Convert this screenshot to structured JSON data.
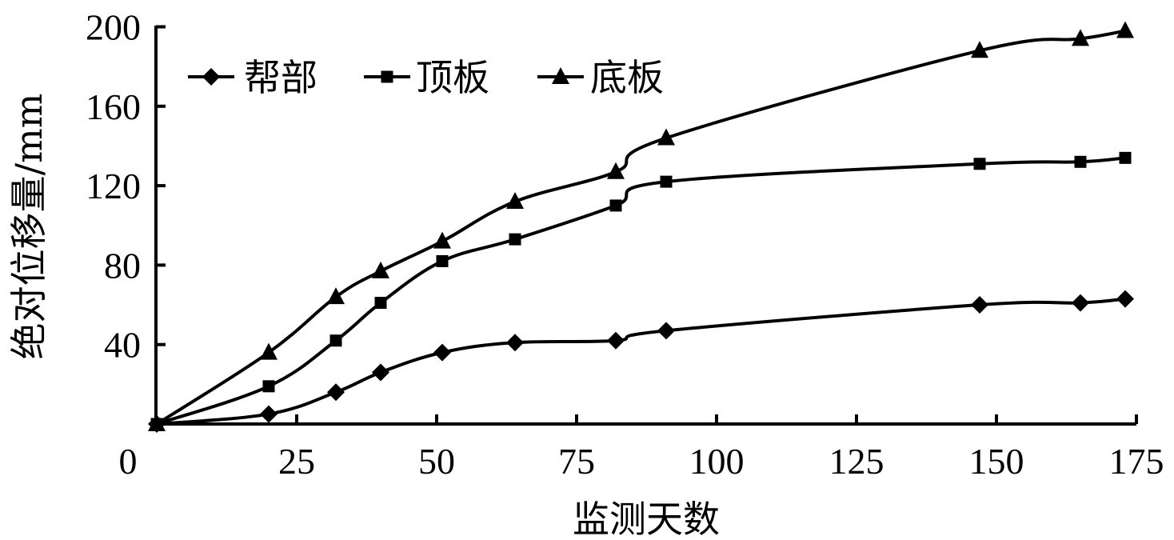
{
  "chart_data": {
    "type": "line",
    "title": "",
    "xlabel": "监测天数",
    "ylabel": "绝对位移量/mm",
    "xlim": [
      0,
      175
    ],
    "ylim": [
      0,
      200
    ],
    "xticks": [
      0,
      25,
      50,
      75,
      100,
      125,
      150,
      175
    ],
    "yticks": [
      40,
      80,
      120,
      160,
      200
    ],
    "grid": false,
    "legend_position": "top-left inside",
    "x": [
      0,
      20,
      32,
      40,
      51,
      64,
      82,
      91,
      147,
      165,
      173
    ],
    "series": [
      {
        "name": "帮部",
        "marker": "diamond",
        "values": [
          0,
          5,
          16,
          26,
          36,
          41,
          42,
          47,
          60,
          61,
          63
        ]
      },
      {
        "name": "顶板",
        "marker": "square",
        "values": [
          0,
          19,
          42,
          61,
          82,
          93,
          110,
          122,
          131,
          132,
          134
        ]
      },
      {
        "name": "底板",
        "marker": "triangle",
        "values": [
          0,
          36,
          64,
          77,
          92,
          112,
          127,
          144,
          188,
          194,
          198
        ]
      }
    ]
  },
  "style": {
    "line_color": "#000000",
    "background": "#ffffff"
  }
}
